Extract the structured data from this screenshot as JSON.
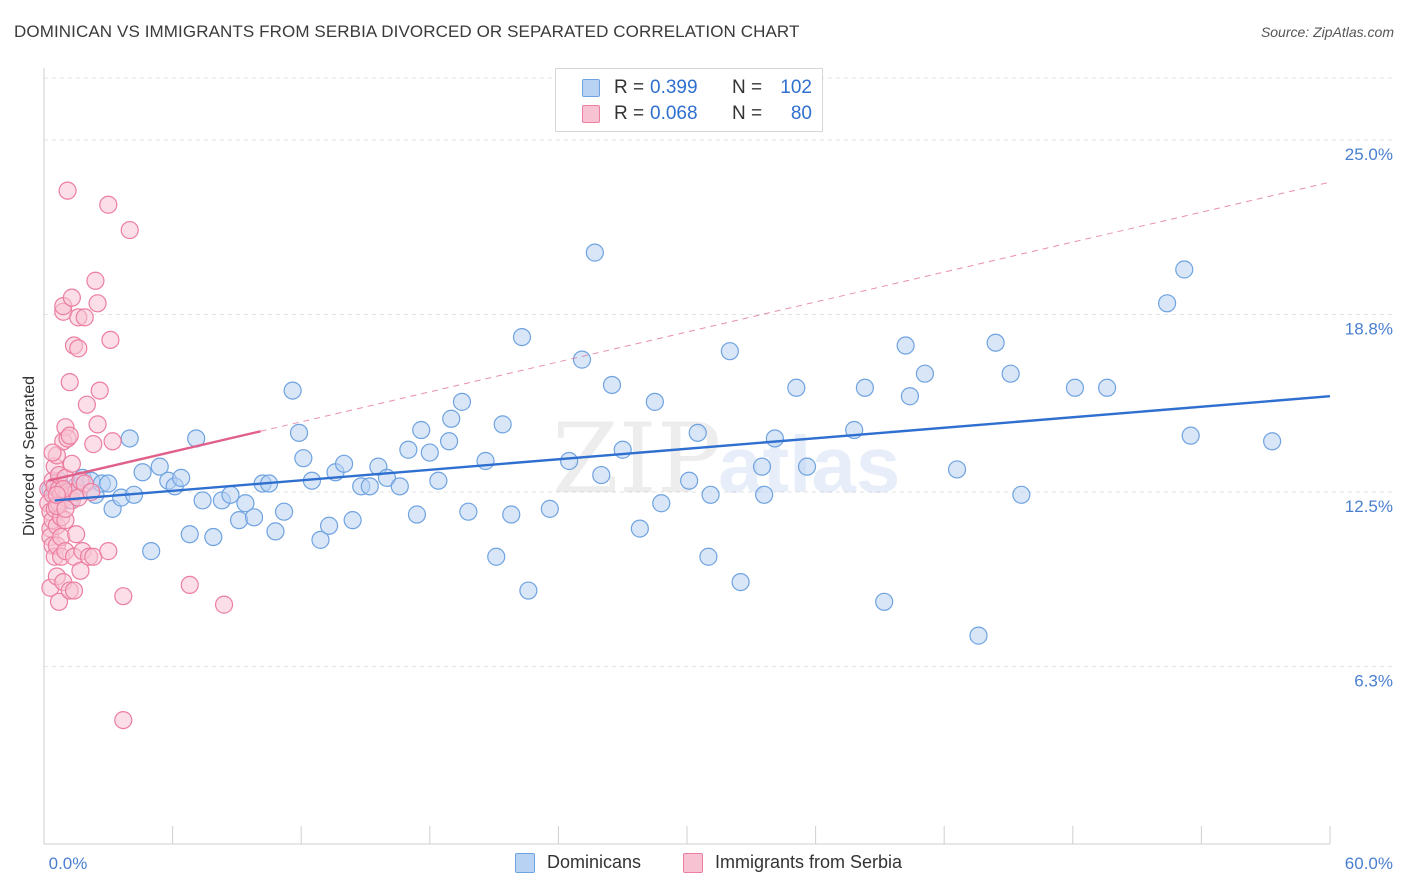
{
  "title": "DOMINICAN VS IMMIGRANTS FROM SERBIA DIVORCED OR SEPARATED CORRELATION CHART",
  "source": "Source: ZipAtlas.com",
  "watermark": {
    "zip": "ZIP",
    "atlas": "atlas"
  },
  "colors": {
    "blue": "#6fa3e0",
    "blue_fill": "#b8d2f3",
    "blue_line": "#2f6fcf",
    "pink": "#ec7ea0",
    "pink_fill": "#f7c3d3",
    "pink_line": "#e0608a",
    "tick_text": "#4a7fd0",
    "grid": "#e3e3e3"
  },
  "legend": {
    "rows": [
      {
        "r_label": "R =",
        "r_value": "0.399",
        "n_label": "N =",
        "n_value": "102",
        "color": "blue"
      },
      {
        "r_label": "R =",
        "r_value": "0.068",
        "n_label": "N =",
        "n_value": "80",
        "color": "pink"
      }
    ]
  },
  "bottom_legend": {
    "dominicans": "Dominicans",
    "serbia": "Immigrants from Serbia"
  },
  "chart_data": {
    "type": "scatter",
    "title": "DOMINICAN VS IMMIGRANTS FROM SERBIA DIVORCED OR SEPARATED CORRELATION CHART",
    "xlabel": "",
    "ylabel": "Divorced or Separated",
    "xlim": [
      0,
      60
    ],
    "ylim": [
      0,
      27.2
    ],
    "x_tick_labels": [
      "0.0%",
      "60.0%"
    ],
    "y_ticks": [
      {
        "value": 6.3,
        "label": "6.3%"
      },
      {
        "value": 12.5,
        "label": "12.5%"
      },
      {
        "value": 18.8,
        "label": "18.8%"
      },
      {
        "value": 25.0,
        "label": "25.0%"
      }
    ],
    "x_minor_ticks": [
      0,
      6,
      12,
      18,
      24,
      30,
      36,
      42,
      48,
      54,
      60
    ],
    "series": [
      {
        "name": "Dominicans",
        "color": "blue",
        "trend": {
          "x0": 0.5,
          "y0": 12.2,
          "x1": 60,
          "y1": 15.9,
          "solid_to": 60
        },
        "points": [
          [
            0.3,
            12.6
          ],
          [
            0.5,
            12.4
          ],
          [
            0.7,
            12.9
          ],
          [
            1.0,
            12.5
          ],
          [
            1.2,
            12.2
          ],
          [
            1.5,
            12.7
          ],
          [
            1.8,
            13.0
          ],
          [
            2.2,
            12.9
          ],
          [
            2.4,
            12.4
          ],
          [
            2.7,
            12.8
          ],
          [
            3.0,
            12.8
          ],
          [
            3.2,
            11.9
          ],
          [
            3.6,
            12.3
          ],
          [
            4.0,
            14.4
          ],
          [
            4.2,
            12.4
          ],
          [
            4.6,
            13.2
          ],
          [
            5.0,
            10.4
          ],
          [
            5.4,
            13.4
          ],
          [
            5.8,
            12.9
          ],
          [
            6.1,
            12.7
          ],
          [
            6.4,
            13.0
          ],
          [
            6.8,
            11.0
          ],
          [
            7.1,
            14.4
          ],
          [
            7.4,
            12.2
          ],
          [
            7.9,
            10.9
          ],
          [
            8.3,
            12.2
          ],
          [
            8.7,
            12.4
          ],
          [
            9.1,
            11.5
          ],
          [
            9.4,
            12.1
          ],
          [
            9.8,
            11.6
          ],
          [
            10.2,
            12.8
          ],
          [
            10.5,
            12.8
          ],
          [
            10.8,
            11.1
          ],
          [
            11.2,
            11.8
          ],
          [
            11.6,
            16.1
          ],
          [
            11.9,
            14.6
          ],
          [
            12.1,
            13.7
          ],
          [
            12.5,
            12.9
          ],
          [
            12.9,
            10.8
          ],
          [
            13.3,
            11.3
          ],
          [
            13.6,
            13.2
          ],
          [
            14.0,
            13.5
          ],
          [
            14.4,
            11.5
          ],
          [
            14.8,
            12.7
          ],
          [
            15.2,
            12.7
          ],
          [
            15.6,
            13.4
          ],
          [
            16.0,
            13.0
          ],
          [
            16.6,
            12.7
          ],
          [
            17.0,
            14.0
          ],
          [
            17.4,
            11.7
          ],
          [
            17.6,
            14.7
          ],
          [
            18.0,
            13.9
          ],
          [
            18.4,
            12.9
          ],
          [
            18.9,
            14.3
          ],
          [
            19.0,
            15.1
          ],
          [
            19.5,
            15.7
          ],
          [
            19.8,
            11.8
          ],
          [
            20.6,
            13.6
          ],
          [
            21.1,
            10.2
          ],
          [
            21.4,
            14.9
          ],
          [
            21.8,
            11.7
          ],
          [
            22.3,
            18.0
          ],
          [
            22.6,
            9.0
          ],
          [
            23.6,
            11.9
          ],
          [
            24.5,
            13.6
          ],
          [
            25.1,
            17.2
          ],
          [
            26.0,
            13.1
          ],
          [
            25.7,
            21.0
          ],
          [
            26.5,
            16.3
          ],
          [
            27.0,
            14.0
          ],
          [
            27.8,
            11.2
          ],
          [
            28.5,
            15.7
          ],
          [
            28.8,
            12.1
          ],
          [
            30.1,
            12.9
          ],
          [
            30.5,
            14.6
          ],
          [
            31.0,
            10.2
          ],
          [
            31.1,
            12.4
          ],
          [
            32.0,
            17.5
          ],
          [
            32.5,
            9.3
          ],
          [
            33.5,
            13.4
          ],
          [
            33.6,
            12.4
          ],
          [
            34.1,
            14.4
          ],
          [
            35.1,
            16.2
          ],
          [
            35.6,
            13.4
          ],
          [
            37.8,
            14.7
          ],
          [
            38.3,
            16.2
          ],
          [
            39.2,
            8.6
          ],
          [
            40.2,
            17.7
          ],
          [
            40.4,
            15.9
          ],
          [
            41.1,
            16.7
          ],
          [
            42.6,
            13.3
          ],
          [
            43.6,
            7.4
          ],
          [
            44.4,
            17.8
          ],
          [
            45.1,
            16.7
          ],
          [
            45.6,
            12.4
          ],
          [
            48.1,
            16.2
          ],
          [
            49.6,
            16.2
          ],
          [
            52.4,
            19.2
          ],
          [
            53.2,
            20.4
          ],
          [
            53.5,
            14.5
          ],
          [
            57.3,
            14.3
          ],
          [
            0.5,
            12.5
          ]
        ]
      },
      {
        "name": "Immigrants from Serbia",
        "color": "pink",
        "trend": {
          "x0": 0.2,
          "y0": 12.9,
          "x1": 60,
          "y1": 23.5,
          "solid_to": 10.1
        },
        "points": [
          [
            0.2,
            12.6
          ],
          [
            0.2,
            12.1
          ],
          [
            0.3,
            11.2
          ],
          [
            0.3,
            11.8
          ],
          [
            0.3,
            10.9
          ],
          [
            0.3,
            9.1
          ],
          [
            0.4,
            12.4
          ],
          [
            0.4,
            10.6
          ],
          [
            0.4,
            11.5
          ],
          [
            0.4,
            12.9
          ],
          [
            0.5,
            13.4
          ],
          [
            0.5,
            10.2
          ],
          [
            0.5,
            11.9
          ],
          [
            0.5,
            12.7
          ],
          [
            0.6,
            9.5
          ],
          [
            0.6,
            13.8
          ],
          [
            0.6,
            11.3
          ],
          [
            0.6,
            10.6
          ],
          [
            0.7,
            8.6
          ],
          [
            0.7,
            12.1
          ],
          [
            0.7,
            12.6
          ],
          [
            0.7,
            13.1
          ],
          [
            0.8,
            10.9
          ],
          [
            0.8,
            11.6
          ],
          [
            0.8,
            10.2
          ],
          [
            0.8,
            12.4
          ],
          [
            0.9,
            9.3
          ],
          [
            0.9,
            14.3
          ],
          [
            0.9,
            18.9
          ],
          [
            0.9,
            19.1
          ],
          [
            1.0,
            12.3
          ],
          [
            1.0,
            10.4
          ],
          [
            1.0,
            11.5
          ],
          [
            1.0,
            13.0
          ],
          [
            1.0,
            14.8
          ],
          [
            1.1,
            23.2
          ],
          [
            1.1,
            14.4
          ],
          [
            1.1,
            12.5
          ],
          [
            1.2,
            16.4
          ],
          [
            1.2,
            14.5
          ],
          [
            1.2,
            9.0
          ],
          [
            1.3,
            19.4
          ],
          [
            1.3,
            13.5
          ],
          [
            1.3,
            12.2
          ],
          [
            1.4,
            17.7
          ],
          [
            1.4,
            10.2
          ],
          [
            1.4,
            9.0
          ],
          [
            1.5,
            12.5
          ],
          [
            1.5,
            11.0
          ],
          [
            1.6,
            18.7
          ],
          [
            1.6,
            17.6
          ],
          [
            1.6,
            12.3
          ],
          [
            1.7,
            12.9
          ],
          [
            1.7,
            9.7
          ],
          [
            1.8,
            10.4
          ],
          [
            1.9,
            18.7
          ],
          [
            1.9,
            12.8
          ],
          [
            2.0,
            15.6
          ],
          [
            2.1,
            10.2
          ],
          [
            2.2,
            12.5
          ],
          [
            2.3,
            10.2
          ],
          [
            2.3,
            14.2
          ],
          [
            2.4,
            20.0
          ],
          [
            2.5,
            19.2
          ],
          [
            2.5,
            14.9
          ],
          [
            2.6,
            16.1
          ],
          [
            3.0,
            10.4
          ],
          [
            3.0,
            22.7
          ],
          [
            3.1,
            17.9
          ],
          [
            3.2,
            14.3
          ],
          [
            3.7,
            8.8
          ],
          [
            3.7,
            4.4
          ],
          [
            4.0,
            21.8
          ],
          [
            6.8,
            9.2
          ],
          [
            8.4,
            8.5
          ],
          [
            0.6,
            12.0
          ],
          [
            0.9,
            12.6
          ],
          [
            1.0,
            11.9
          ],
          [
            0.4,
            13.9
          ],
          [
            0.6,
            12.4
          ]
        ]
      }
    ]
  }
}
